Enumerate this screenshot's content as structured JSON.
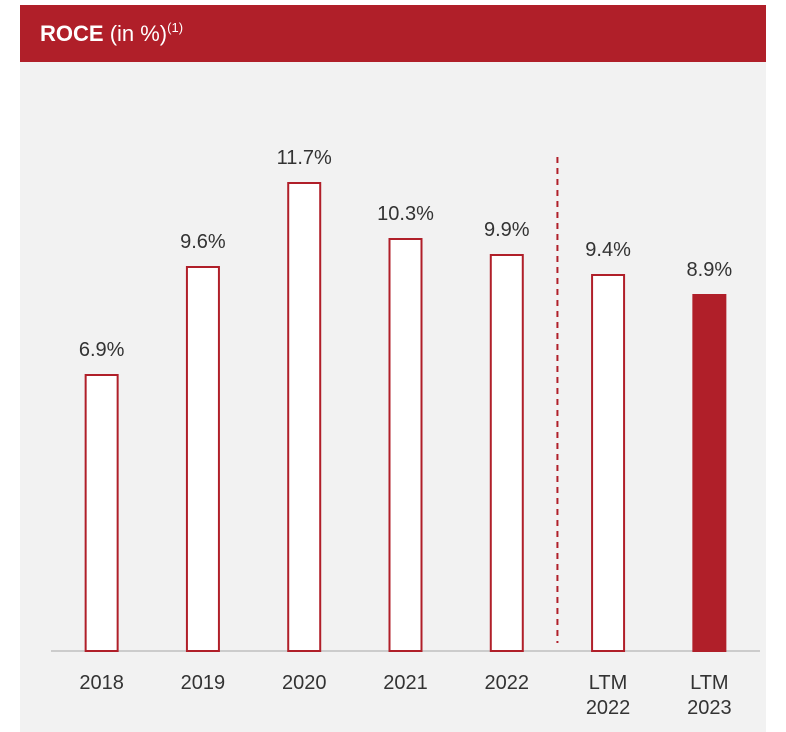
{
  "chart_data": {
    "type": "bar",
    "title": "ROCE",
    "title_unit": "(in %)",
    "title_note": "(1)",
    "categories": [
      "2018",
      "2019",
      "2020",
      "2021",
      "2022",
      "LTM 2022",
      "LTM 2023"
    ],
    "values": [
      6.9,
      9.6,
      11.7,
      10.3,
      9.9,
      9.4,
      8.9
    ],
    "value_labels": [
      "6.9%",
      "9.6%",
      "11.7%",
      "10.3%",
      "9.9%",
      "9.4%",
      "8.9%"
    ],
    "color": "#b01f29",
    "fill_colors": [
      "#ffffff",
      "#ffffff",
      "#ffffff",
      "#ffffff",
      "#ffffff",
      "#ffffff",
      "#b01f29"
    ],
    "divider_after": 4,
    "ylim": [
      0,
      12
    ]
  }
}
